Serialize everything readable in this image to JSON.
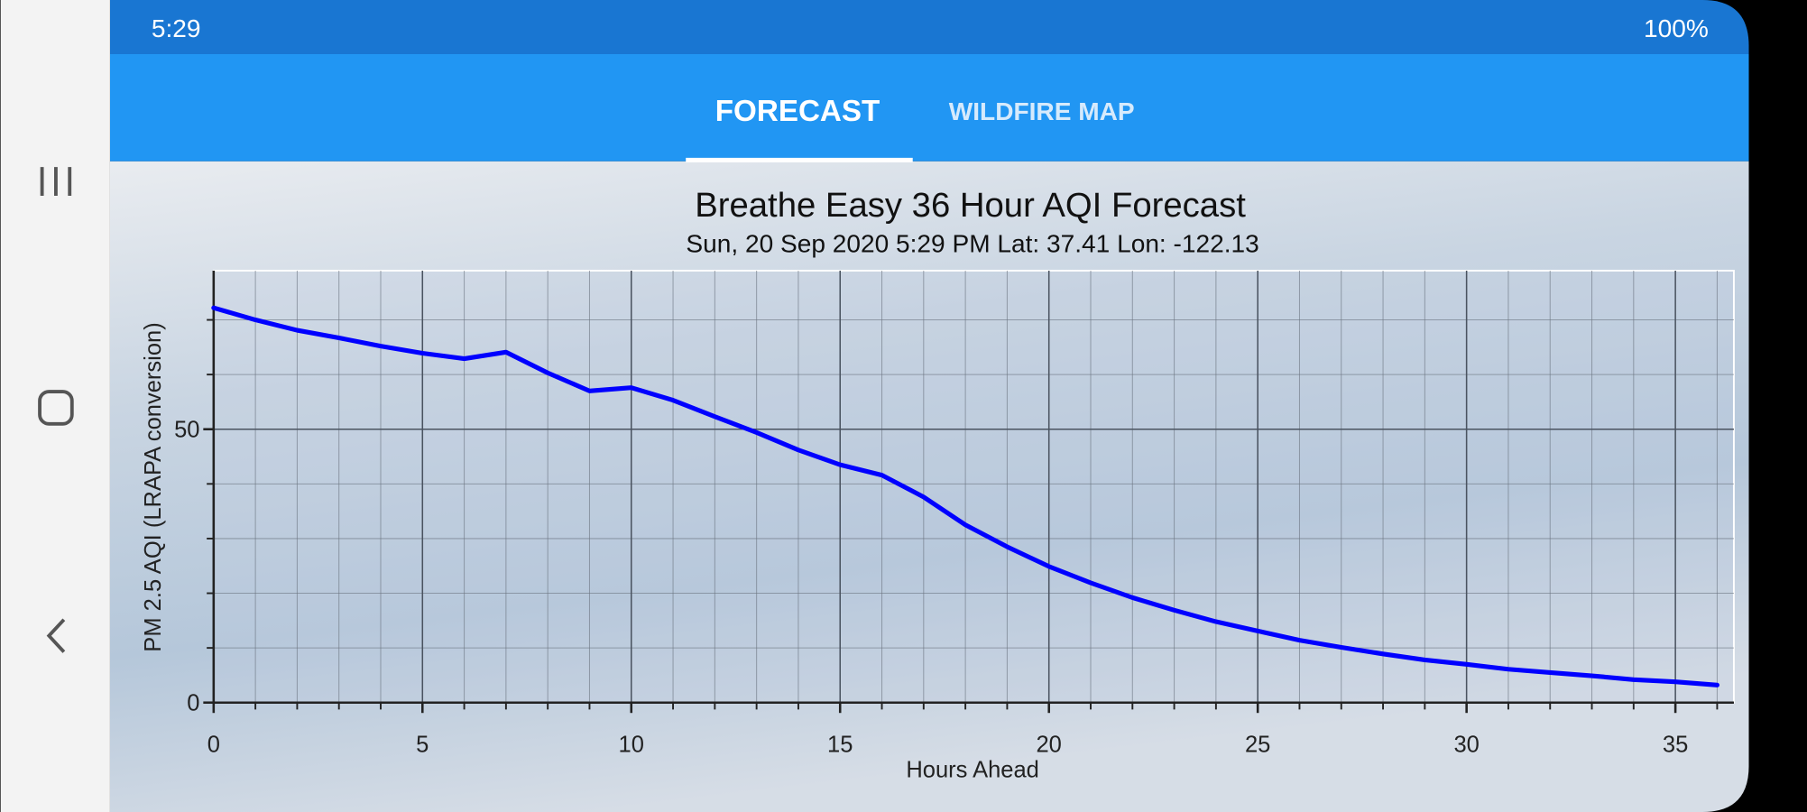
{
  "status_bar": {
    "time": "5:29",
    "battery": "100%"
  },
  "tabs": [
    {
      "label": "FORECAST"
    },
    {
      "label": "WILDFIRE MAP"
    }
  ],
  "chart_data": {
    "type": "line",
    "title": "Breathe Easy 36 Hour AQI Forecast",
    "subtitle": "Sun, 20 Sep 2020 5:29 PM Lat: 37.41 Lon: -122.13",
    "x_label": "Hours Ahead",
    "y_label": "PM 2.5 AQI (LRAPA conversion)",
    "x": [
      0,
      1,
      2,
      3,
      4,
      5,
      6,
      7,
      8,
      9,
      10,
      11,
      12,
      13,
      14,
      15,
      16,
      17,
      18,
      19,
      20,
      21,
      22,
      23,
      24,
      25,
      26,
      27,
      28,
      29,
      30,
      31,
      32,
      33,
      34,
      35,
      36
    ],
    "series": [
      {
        "color": "#0000ff",
        "values": [
          72.2,
          70,
          68.1,
          66.7,
          65.2,
          63.9,
          62.9,
          64.1,
          60.3,
          57,
          57.6,
          55.3,
          52.3,
          49.4,
          46.2,
          43.5,
          41.6,
          37.6,
          32.5,
          28.5,
          24.9,
          21.9,
          19.2,
          16.9,
          14.8,
          13.1,
          11.4,
          10.1,
          8.9,
          7.8,
          7.0,
          6.1,
          5.5,
          4.9,
          4.2,
          3.8,
          3.2
        ]
      }
    ],
    "xlim": [
      0,
      36.4
    ],
    "ylim": [
      0,
      79
    ],
    "xticks": [
      0,
      5,
      10,
      15,
      20,
      25,
      30,
      35
    ],
    "yticks": [
      0,
      50
    ],
    "grid": true,
    "x_minor_step": 1,
    "y_minor_step": 10
  }
}
